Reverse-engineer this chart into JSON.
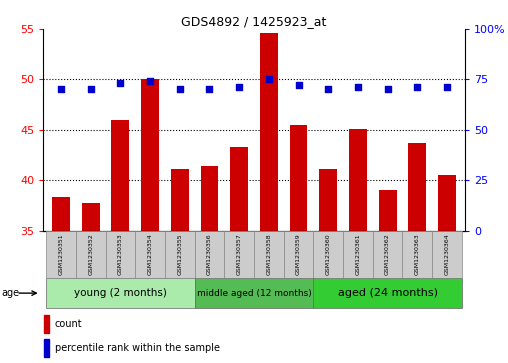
{
  "title": "GDS4892 / 1425923_at",
  "samples": [
    "GSM1230351",
    "GSM1230352",
    "GSM1230353",
    "GSM1230354",
    "GSM1230355",
    "GSM1230356",
    "GSM1230357",
    "GSM1230358",
    "GSM1230359",
    "GSM1230360",
    "GSM1230361",
    "GSM1230362",
    "GSM1230363",
    "GSM1230364"
  ],
  "bar_values": [
    38.3,
    37.7,
    46.0,
    50.0,
    41.1,
    41.4,
    43.3,
    54.6,
    45.5,
    41.1,
    45.1,
    39.0,
    43.7,
    40.5
  ],
  "percentile_values": [
    70,
    70,
    73,
    74,
    70,
    70,
    71,
    75,
    72,
    70,
    71,
    70,
    71,
    71
  ],
  "ylim_left": [
    35,
    55
  ],
  "ylim_right": [
    0,
    100
  ],
  "yticks_left": [
    35,
    40,
    45,
    50,
    55
  ],
  "yticks_right": [
    0,
    25,
    50,
    75,
    100
  ],
  "bar_color": "#cc0000",
  "percentile_color": "#0000cc",
  "group_young_color": "#aaeaaa",
  "group_middle_color": "#55bb55",
  "group_aged_color": "#33cc33",
  "age_label": "age",
  "legend_count_label": "count",
  "legend_percentile_label": "percentile rank within the sample",
  "grid_yticks": [
    40,
    45,
    50
  ],
  "group_young_label": "young (2 months)",
  "group_middle_label": "middle aged (12 months)",
  "group_aged_label": "aged (24 months)"
}
